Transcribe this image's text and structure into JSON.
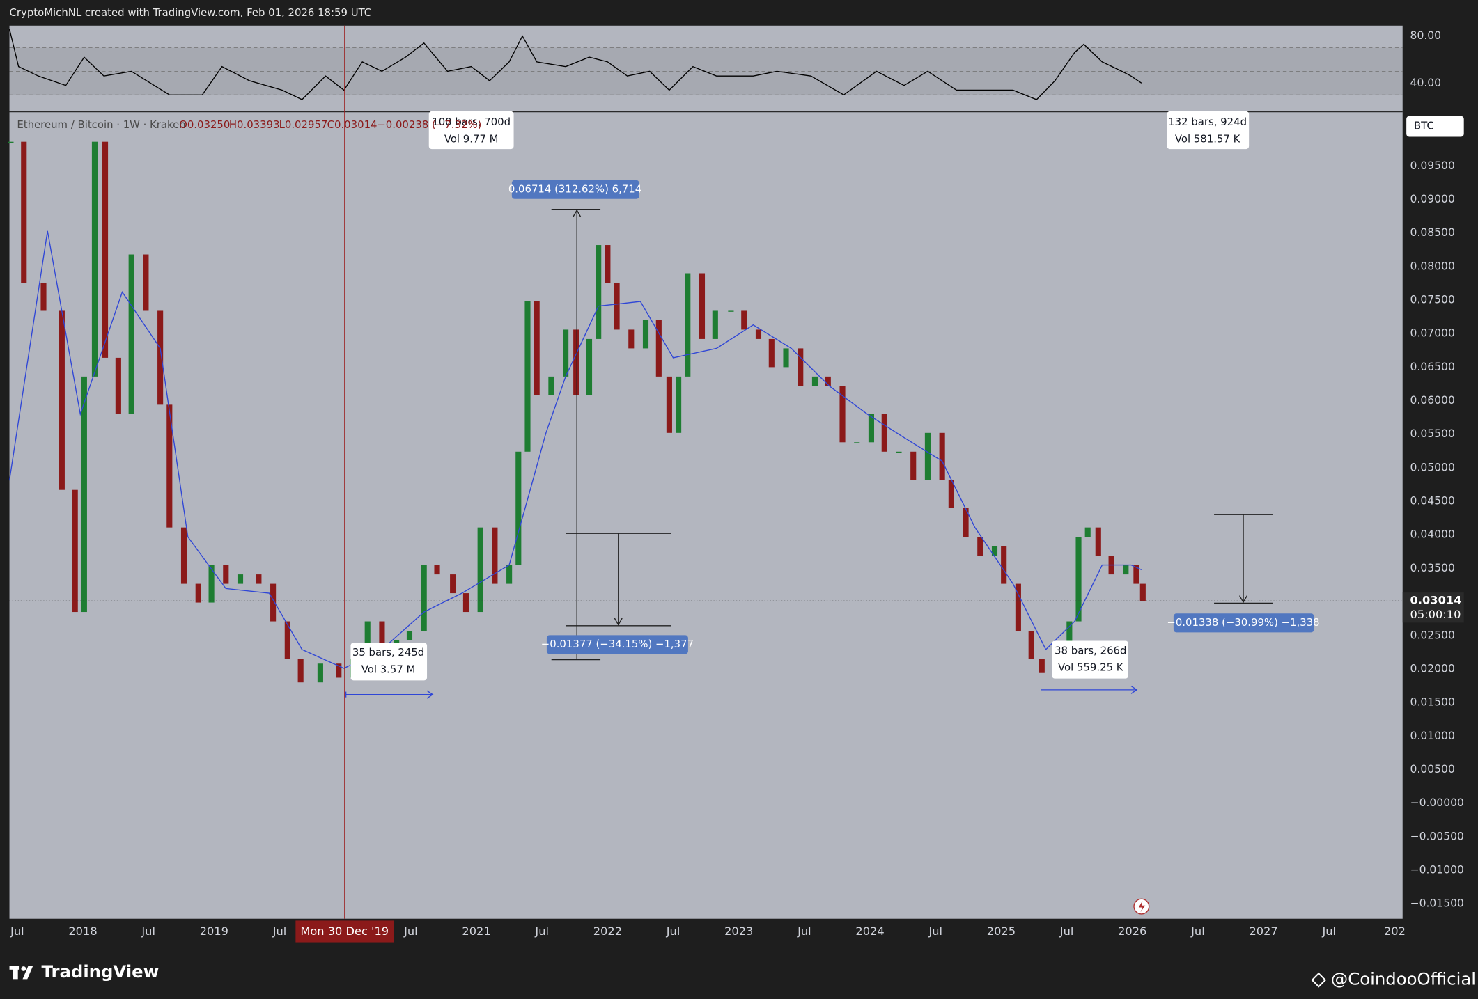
{
  "header": "CryptoMichNL created with TradingView.com, Feb 01, 2026 18:59 UTC",
  "footer": {
    "brand": "TradingView",
    "watermark": "@CoindooOfficial"
  },
  "chart_data": {
    "type": "candlestick",
    "title": "Ethereum / Bitcoin · 1W · Kraken",
    "ohlc": {
      "open": "O0.03250",
      "high": "H0.03393",
      "low": "L0.02957",
      "close": "C0.03014",
      "change": "−0.00238 (−7.32%)"
    },
    "x": [
      2017.45,
      2017.55,
      2017.7,
      2017.84,
      2017.94,
      2018.01,
      2018.09,
      2018.17,
      2018.27,
      2018.37,
      2018.48,
      2018.59,
      2018.66,
      2018.77,
      2018.88,
      2018.98,
      2019.09,
      2019.2,
      2019.34,
      2019.45,
      2019.56,
      2019.66,
      2019.81,
      2019.95,
      2020.06,
      2020.17,
      2020.28,
      2020.39,
      2020.49,
      2020.6,
      2020.7,
      2020.82,
      2020.92,
      2021.03,
      2021.14,
      2021.25,
      2021.32,
      2021.39,
      2021.46,
      2021.57,
      2021.68,
      2021.76,
      2021.86,
      2021.93,
      2022.0,
      2022.07,
      2022.18,
      2022.29,
      2022.39,
      2022.47,
      2022.54,
      2022.61,
      2022.72,
      2022.82,
      2022.94,
      2023.04,
      2023.15,
      2023.25,
      2023.36,
      2023.47,
      2023.58,
      2023.68,
      2023.79,
      2023.9,
      2024.01,
      2024.11,
      2024.22,
      2024.33,
      2024.44,
      2024.55,
      2024.62,
      2024.73,
      2024.84,
      2024.95,
      2025.02,
      2025.13,
      2025.23,
      2025.31,
      2025.41,
      2025.52,
      2025.59,
      2025.66,
      2025.74,
      2025.84,
      2025.95,
      2026.03,
      2026.08
    ],
    "values": [
      0.0986,
      0.0776,
      0.0734,
      0.0467,
      0.0285,
      0.0636,
      0.0986,
      0.0664,
      0.058,
      0.0818,
      0.0734,
      0.0594,
      0.0411,
      0.0327,
      0.0299,
      0.0355,
      0.0327,
      0.0341,
      0.0327,
      0.0271,
      0.0215,
      0.018,
      0.0208,
      0.0187,
      0.0215,
      0.0271,
      0.0229,
      0.0243,
      0.0257,
      0.0355,
      0.0341,
      0.0313,
      0.0285,
      0.0411,
      0.0327,
      0.0355,
      0.0524,
      0.0748,
      0.0608,
      0.0636,
      0.0706,
      0.0608,
      0.0692,
      0.0832,
      0.0776,
      0.0706,
      0.0678,
      0.072,
      0.0636,
      0.0552,
      0.0636,
      0.079,
      0.0692,
      0.0734,
      0.0734,
      0.0706,
      0.0692,
      0.065,
      0.0678,
      0.0622,
      0.0636,
      0.0622,
      0.0538,
      0.0538,
      0.058,
      0.0524,
      0.0524,
      0.0482,
      0.0552,
      0.0482,
      0.044,
      0.0397,
      0.0369,
      0.0383,
      0.0327,
      0.0257,
      0.0215,
      0.0194,
      0.0229,
      0.0271,
      0.0397,
      0.0411,
      0.0369,
      0.0341,
      0.0355,
      0.0327,
      0.03014
    ],
    "up_color": "#1e7d32",
    "down_color": "#8b1a1a",
    "moving_average": {
      "color": "#2f46d6",
      "x": [
        2017.44,
        2017.73,
        2017.98,
        2018.3,
        2018.59,
        2018.8,
        2019.09,
        2019.42,
        2019.67,
        2019.99,
        2020.28,
        2020.6,
        2020.89,
        2021.25,
        2021.39,
        2021.53,
        2021.68,
        2021.93,
        2022.25,
        2022.5,
        2022.83,
        2023.11,
        2023.4,
        2023.69,
        2023.98,
        2024.26,
        2024.55,
        2024.8,
        2025.09,
        2025.34,
        2025.56,
        2025.77,
        2025.99,
        2026.07
      ],
      "values": [
        0.0481,
        0.0853,
        0.058,
        0.0762,
        0.0678,
        0.0397,
        0.032,
        0.0313,
        0.0229,
        0.0201,
        0.0229,
        0.0285,
        0.0313,
        0.0355,
        0.0453,
        0.0552,
        0.0636,
        0.0741,
        0.0748,
        0.0664,
        0.0678,
        0.0713,
        0.0678,
        0.0622,
        0.058,
        0.0545,
        0.051,
        0.0411,
        0.0327,
        0.0229,
        0.0271,
        0.0355,
        0.0355,
        0.0348
      ]
    },
    "last_price": 0.03014,
    "countdown": "05:00:10",
    "currency": "BTC",
    "ylim": [
      -0.01724,
      0.10314
    ],
    "yticks": [
      {
        "value": 0.095,
        "label": "0.09500"
      },
      {
        "value": 0.09,
        "label": "0.09000"
      },
      {
        "value": 0.085,
        "label": "0.08500"
      },
      {
        "value": 0.08,
        "label": "0.08000"
      },
      {
        "value": 0.075,
        "label": "0.07500"
      },
      {
        "value": 0.07,
        "label": "0.07000"
      },
      {
        "value": 0.065,
        "label": "0.06500"
      },
      {
        "value": 0.06,
        "label": "0.06000"
      },
      {
        "value": 0.055,
        "label": "0.05500"
      },
      {
        "value": 0.05,
        "label": "0.05000"
      },
      {
        "value": 0.045,
        "label": "0.04500"
      },
      {
        "value": 0.04,
        "label": "0.04000"
      },
      {
        "value": 0.035,
        "label": "0.03500"
      },
      {
        "value": 0.025,
        "label": "0.02500"
      },
      {
        "value": 0.02,
        "label": "0.02000"
      },
      {
        "value": 0.015,
        "label": "0.01500"
      },
      {
        "value": 0.01,
        "label": "0.01000"
      },
      {
        "value": 0.005,
        "label": "0.00500"
      },
      {
        "value": 0,
        "label": "−0.00000"
      },
      {
        "value": -0.005,
        "label": "−0.00500"
      },
      {
        "value": -0.01,
        "label": "−0.01000"
      },
      {
        "value": -0.015,
        "label": "−0.01500"
      }
    ],
    "xlim": [
      2017.44,
      2028.06
    ],
    "xticks": [
      {
        "value": 2017.5,
        "label": "Jul"
      },
      2018,
      {
        "value": 2018.5,
        "label": "Jul"
      },
      2019,
      {
        "value": 2019.5,
        "label": "Jul"
      },
      {
        "value": 2020.5,
        "label": "Jul"
      },
      2021,
      {
        "value": 2021.5,
        "label": "Jul"
      },
      2022,
      {
        "value": 2022.5,
        "label": "Jul"
      },
      2023,
      {
        "value": 2023.5,
        "label": "Jul"
      },
      2024,
      {
        "value": 2024.5,
        "label": "Jul"
      },
      2025,
      {
        "value": 2025.5,
        "label": "Jul"
      },
      2026,
      {
        "value": 2026.5,
        "label": "Jul"
      },
      2027,
      {
        "value": 2027.5,
        "label": "Jul"
      },
      {
        "value": 2028,
        "label": "202"
      }
    ],
    "crosshair": {
      "value": 2019.995,
      "label": "Mon 30 Dec '19"
    },
    "grid": false,
    "rsi": {
      "color": "#000000",
      "x": [
        2017.44,
        2017.51,
        2017.66,
        2017.87,
        2018.01,
        2018.16,
        2018.37,
        2018.66,
        2018.91,
        2019.06,
        2019.27,
        2019.52,
        2019.67,
        2019.85,
        2019.99,
        2020.13,
        2020.28,
        2020.46,
        2020.6,
        2020.78,
        2020.96,
        2021.1,
        2021.25,
        2021.35,
        2021.46,
        2021.68,
        2021.86,
        2022.0,
        2022.15,
        2022.32,
        2022.47,
        2022.65,
        2022.83,
        2023.11,
        2023.29,
        2023.55,
        2023.8,
        2024.05,
        2024.26,
        2024.44,
        2024.66,
        2024.88,
        2025.09,
        2025.27,
        2025.41,
        2025.56,
        2025.63,
        2025.77,
        2025.92,
        2025.99,
        2026.07
      ],
      "values": [
        86,
        54,
        46,
        38,
        62,
        46,
        50,
        30,
        30,
        54,
        42,
        34,
        26,
        46,
        34,
        58,
        50,
        62,
        74,
        50,
        54,
        42,
        58,
        80,
        58,
        54,
        62,
        58,
        46,
        50,
        34,
        54,
        46,
        46,
        50,
        46,
        30,
        50,
        38,
        50,
        34,
        34,
        34,
        26,
        42,
        66,
        73,
        58,
        50,
        46,
        40
      ],
      "levels": [
        70,
        50,
        30
      ],
      "ylim": [
        16,
        88.8
      ],
      "yticks": [
        {
          "value": 80,
          "label": "80.00"
        },
        {
          "value": 40,
          "label": "40.00"
        }
      ]
    },
    "annotations": [
      {
        "lines": [
          "100 bars, 700d",
          "Vol 9.77 M"
        ]
      },
      {
        "lines": [
          "132 bars, 924d",
          "Vol 581.57 K"
        ]
      },
      {
        "lines": [
          "35 bars, 245d",
          "Vol 3.57 M"
        ]
      },
      {
        "lines": [
          "38 bars, 266d",
          "Vol 559.25 K"
        ]
      },
      {
        "lines": [
          "0.06714 (312.62%) 6,714"
        ]
      },
      {
        "lines": [
          "−0.01377 (−34.15%) −1,377"
        ]
      },
      {
        "lines": [
          "−0.01338 (−30.99%) −1,338"
        ]
      }
    ]
  }
}
